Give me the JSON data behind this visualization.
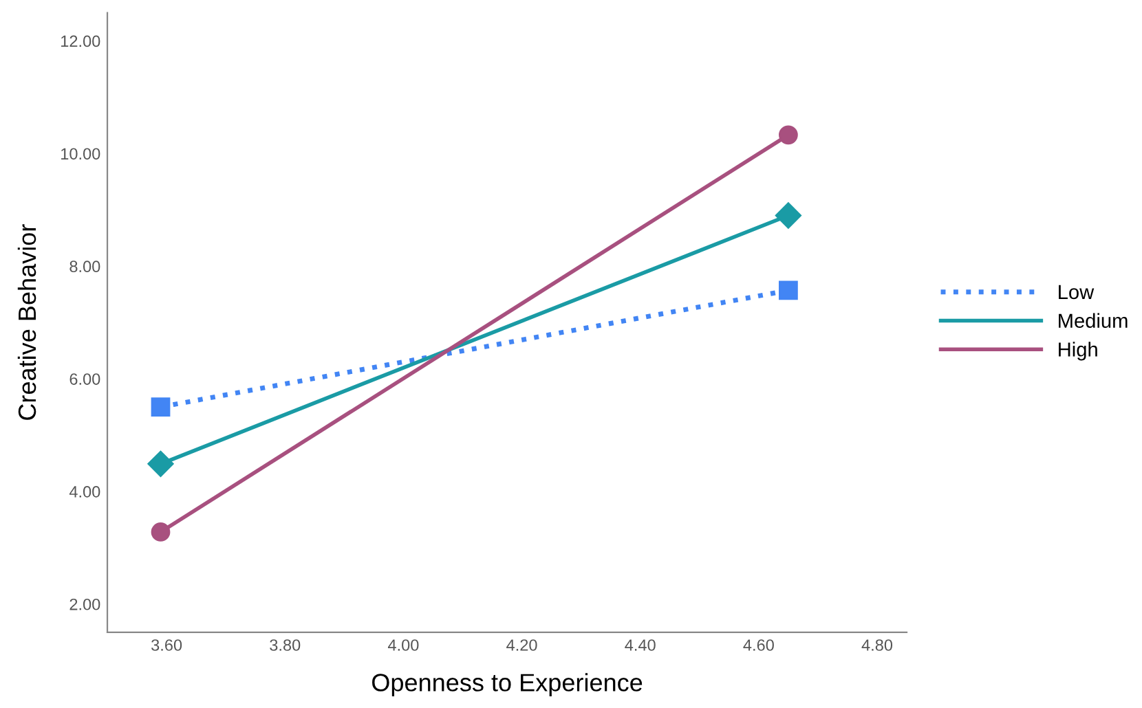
{
  "chart_data": {
    "type": "line",
    "xlabel": "Openness to Experience",
    "ylabel": "Creative Behavior",
    "x": [
      3.59,
      4.65
    ],
    "series": [
      {
        "name": "Low",
        "color": "#4285f4",
        "values": [
          5.5,
          7.57
        ],
        "marker": "square",
        "line_style": "dotted"
      },
      {
        "name": "Medium",
        "color": "#1a9ba5",
        "values": [
          4.49,
          8.9
        ],
        "marker": "diamond",
        "line_style": "solid"
      },
      {
        "name": "High",
        "color": "#a8507f",
        "values": [
          3.28,
          10.33
        ],
        "marker": "circle",
        "line_style": "solid"
      }
    ],
    "xlim": [
      3.5,
      4.85
    ],
    "ylim": [
      1.5,
      12.5
    ],
    "xticks": [
      {
        "value": 3.6,
        "label": "3.60"
      },
      {
        "value": 3.8,
        "label": "3.80"
      },
      {
        "value": 4.0,
        "label": "4.00"
      },
      {
        "value": 4.2,
        "label": "4.20"
      },
      {
        "value": 4.4,
        "label": "4.40"
      },
      {
        "value": 4.6,
        "label": "4.60"
      },
      {
        "value": 4.8,
        "label": "4.80"
      }
    ],
    "yticks": [
      {
        "value": 2,
        "label": "2.00"
      },
      {
        "value": 4,
        "label": "4.00"
      },
      {
        "value": 6,
        "label": "6.00"
      },
      {
        "value": 8,
        "label": "8.00"
      },
      {
        "value": 10,
        "label": "10.00"
      },
      {
        "value": 12,
        "label": "12.00"
      }
    ],
    "grid": false,
    "legend": "right"
  }
}
